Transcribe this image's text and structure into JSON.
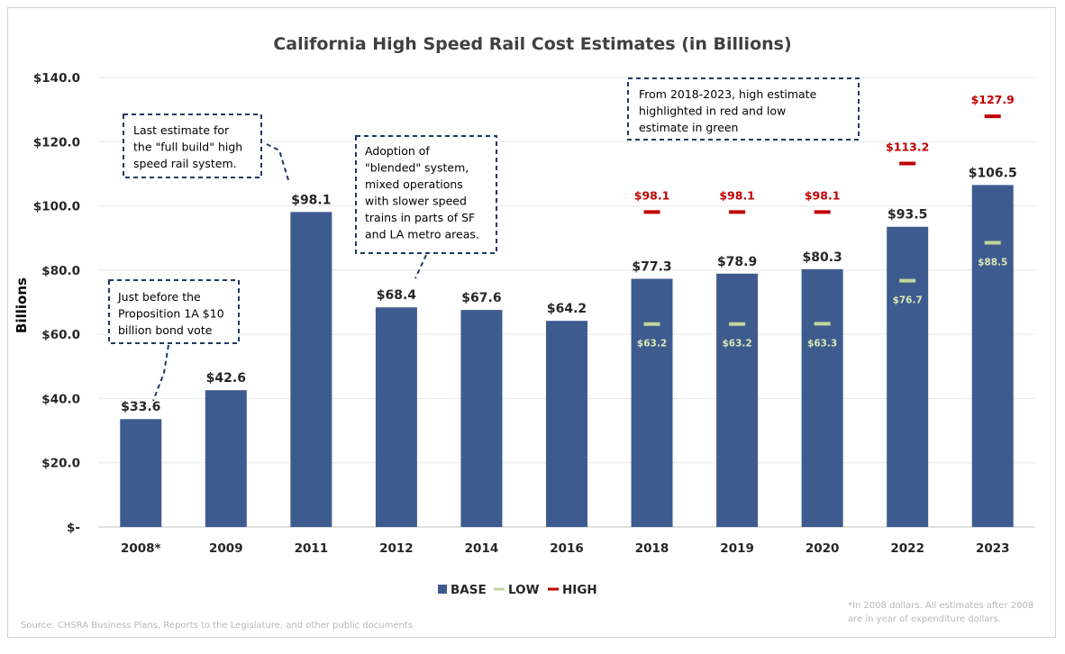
{
  "chart_data": {
    "type": "bar",
    "title": "California High Speed Rail Cost Estimates (in Billions)",
    "ylabel": "Billions",
    "xlabel": "",
    "ylim": [
      0,
      140
    ],
    "yticks": [
      0,
      20,
      40,
      60,
      80,
      100,
      120,
      140
    ],
    "ytick_labels": [
      "$-",
      "$20.0",
      "$40.0",
      "$60.0",
      "$80.0",
      "$100.0",
      "$120.0",
      "$140.0"
    ],
    "grid": true,
    "legend_position": "bottom",
    "colors": {
      "base": "#3e5b8f",
      "low": "#c3d69b",
      "high": "#c00000"
    },
    "categories": [
      "2008*",
      "2009",
      "2011",
      "2012",
      "2014",
      "2016",
      "2018",
      "2019",
      "2020",
      "2022",
      "2023"
    ],
    "series": [
      {
        "name": "BASE",
        "kind": "bar",
        "values": [
          33.6,
          42.6,
          98.1,
          68.4,
          67.6,
          64.2,
          77.3,
          78.9,
          80.3,
          93.5,
          106.5
        ],
        "labels": [
          "$33.6",
          "$42.6",
          "$98.1",
          "$68.4",
          "$67.6",
          "$64.2",
          "$77.3",
          "$78.9",
          "$80.3",
          "$93.5",
          "$106.5"
        ]
      },
      {
        "name": "LOW",
        "kind": "marker",
        "values": [
          null,
          null,
          null,
          null,
          null,
          null,
          63.2,
          63.2,
          63.3,
          76.7,
          88.5
        ],
        "labels": [
          null,
          null,
          null,
          null,
          null,
          null,
          "$63.2",
          "$63.2",
          "$63.3",
          "$76.7",
          "$88.5"
        ]
      },
      {
        "name": "HIGH",
        "kind": "marker",
        "values": [
          null,
          null,
          null,
          null,
          null,
          null,
          98.1,
          98.1,
          98.1,
          113.2,
          127.9
        ],
        "labels": [
          null,
          null,
          null,
          null,
          null,
          null,
          "$98.1",
          "$98.1",
          "$98.1",
          "$113.2",
          "$127.9"
        ]
      }
    ],
    "annotations": [
      {
        "target": "2008*",
        "lines": [
          "Just before the",
          "Proposition 1A $10",
          "billion bond vote"
        ]
      },
      {
        "target": "2011",
        "lines": [
          "Last estimate for",
          "the \"full build\" high",
          "speed rail system."
        ]
      },
      {
        "target": "2012",
        "lines": [
          "Adoption of",
          "\"blended\" system,",
          "mixed operations",
          "with slower speed",
          "trains in parts of SF",
          "and LA metro areas."
        ]
      },
      {
        "target": "2018-2023",
        "lines": [
          "From 2018-2023, high estimate",
          "highlighted in red and low",
          "estimate in green"
        ]
      }
    ],
    "footnote": [
      "*In 2008 dollars. All estimates after 2008",
      "are in year of expenditure dollars."
    ],
    "source": "Source: CHSRA Business Plans, Reports to the Legislature, and other public documents"
  }
}
